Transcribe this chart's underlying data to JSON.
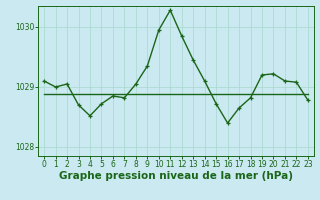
{
  "background_color": "#cbe9f0",
  "grid_color": "#a8d8cc",
  "line_color": "#1a6618",
  "x_values": [
    0,
    1,
    2,
    3,
    4,
    5,
    6,
    7,
    8,
    9,
    10,
    11,
    12,
    13,
    14,
    15,
    16,
    17,
    18,
    19,
    20,
    21,
    22,
    23
  ],
  "y_data": [
    1029.1,
    1029.0,
    1029.05,
    1028.7,
    1028.52,
    1028.72,
    1028.85,
    1028.82,
    1029.05,
    1029.35,
    1029.95,
    1030.28,
    1029.85,
    1029.45,
    1029.1,
    1028.72,
    1028.4,
    1028.65,
    1028.82,
    1029.2,
    1029.22,
    1029.1,
    1029.08,
    1028.78
  ],
  "y_ref": [
    1028.88,
    1028.88,
    1028.88,
    1028.88,
    1028.88,
    1028.88,
    1028.88,
    1028.88,
    1028.88,
    1028.88,
    1028.88,
    1028.88,
    1028.88,
    1028.88,
    1028.88,
    1028.88,
    1028.88,
    1028.88,
    1028.88,
    1028.88,
    1028.88,
    1028.88,
    1028.88,
    1028.88
  ],
  "ylim": [
    1027.85,
    1030.35
  ],
  "yticks": [
    1028,
    1029,
    1030
  ],
  "xticks": [
    0,
    1,
    2,
    3,
    4,
    5,
    6,
    7,
    8,
    9,
    10,
    11,
    12,
    13,
    14,
    15,
    16,
    17,
    18,
    19,
    20,
    21,
    22,
    23
  ],
  "xlabel": "Graphe pression niveau de la mer (hPa)",
  "marker": "+",
  "marker_size": 3,
  "line_width": 1.0,
  "tick_fontsize": 5.5,
  "xlabel_fontsize": 7.5
}
